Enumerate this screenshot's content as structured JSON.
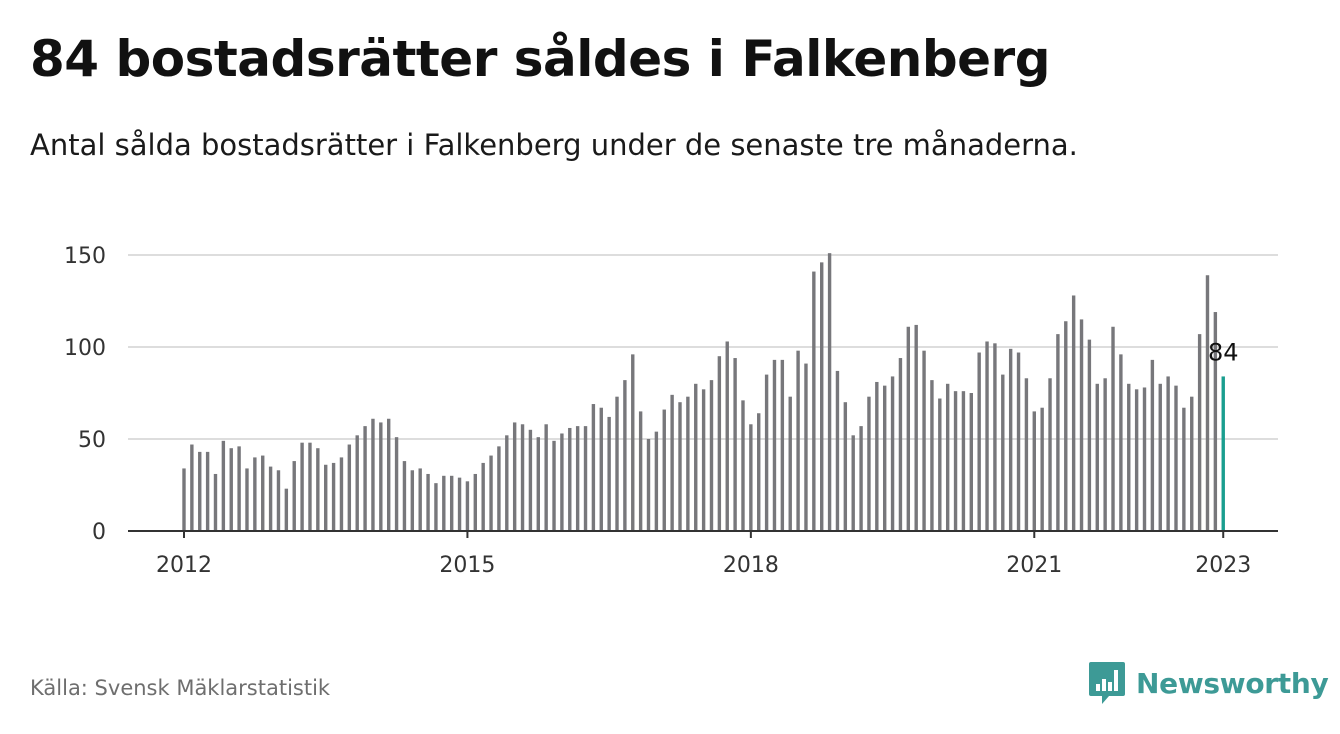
{
  "title": "84 bostadsrätter såldes i Falkenberg",
  "subtitle": "Antal sålda bostadsrätter i Falkenberg under de senaste tre månaderna.",
  "source": "Källa: Svensk Mäklarstatistik",
  "brand": {
    "name": "Newsworthy",
    "icon": "newsworthy-logo-icon"
  },
  "colors": {
    "bar": "#77777b",
    "highlight": "#1a9e8f",
    "grid": "#dddddd",
    "axis": "#333333",
    "brand": "#3d9a96"
  },
  "chart_data": {
    "type": "bar",
    "title": "84 bostadsrätter såldes i Falkenberg",
    "subtitle": "Antal sålda bostadsrätter i Falkenberg under de senaste tre månaderna.",
    "xlabel": "",
    "ylabel": "",
    "ylim": [
      0,
      150
    ],
    "yticks": [
      0,
      50,
      100,
      150
    ],
    "xticks": [
      "2012",
      "2015",
      "2018",
      "2021",
      "2023"
    ],
    "grid": true,
    "x_start": "2012-01",
    "x_end": "2023-01",
    "frequency": "monthly",
    "values": [
      34,
      47,
      43,
      43,
      31,
      49,
      45,
      46,
      34,
      40,
      41,
      35,
      33,
      23,
      38,
      48,
      48,
      45,
      36,
      37,
      40,
      47,
      52,
      57,
      61,
      59,
      61,
      51,
      38,
      33,
      34,
      31,
      26,
      30,
      30,
      29,
      27,
      31,
      37,
      41,
      46,
      52,
      59,
      58,
      55,
      51,
      58,
      49,
      53,
      56,
      57,
      57,
      69,
      67,
      62,
      73,
      82,
      96,
      65,
      50,
      54,
      66,
      74,
      70,
      73,
      80,
      77,
      82,
      95,
      103,
      94,
      71,
      58,
      64,
      85,
      93,
      93,
      73,
      98,
      91,
      141,
      146,
      151,
      87,
      70,
      52,
      57,
      73,
      81,
      79,
      84,
      94,
      111,
      112,
      98,
      82,
      72,
      80,
      76,
      76,
      75,
      97,
      103,
      102,
      85,
      99,
      97,
      83,
      65,
      67,
      83,
      107,
      114,
      128,
      115,
      104,
      80,
      83,
      111,
      96,
      80,
      77,
      78,
      93,
      80,
      84,
      79,
      67,
      73,
      107,
      139,
      119,
      84
    ],
    "highlight_last": true,
    "annotation": {
      "label": "84",
      "value": 84
    }
  }
}
